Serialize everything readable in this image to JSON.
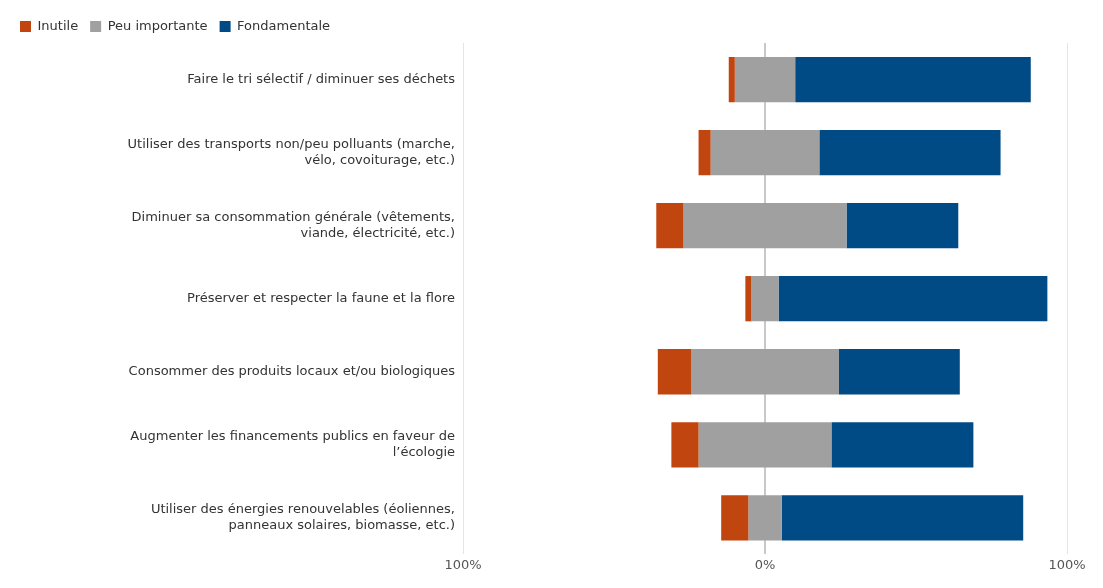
{
  "chart_data": {
    "type": "bar",
    "orientation": "horizontal",
    "categories": [
      "Faire le tri sélectif / diminuer ses déchets",
      "Utiliser des transports non/peu polluants (marche, vélo, covoiturage, etc.)",
      "Diminuer sa consommation générale (vêtements, viande, électricité, etc.)",
      "Préserver et respecter la faune et la flore",
      "Consommer des produits locaux et/ou biologiques",
      "Augmenter les financements publics en faveur de l’écologie",
      "Utiliser des énergies renouvelables (éoliennes, panneaux solaires, biomasse, etc.)"
    ],
    "series": [
      {
        "name": "Inutile",
        "color": "#c0450f",
        "values": [
          2,
          4,
          9,
          2,
          11,
          9,
          9
        ],
        "base": [
          -12,
          -22,
          -36,
          -6.5,
          -35.5,
          -31,
          -14.5
        ]
      },
      {
        "name": "Peu importante",
        "color": "#a0a0a0",
        "values": [
          20,
          36,
          54,
          9,
          49,
          44,
          11
        ],
        "base": [
          -10,
          -18,
          -27,
          -4.5,
          -24.5,
          -22,
          -5.5
        ]
      },
      {
        "name": "Fondamentale",
        "color": "#004a86",
        "values": [
          78,
          60,
          37,
          89,
          40,
          47,
          80
        ],
        "base": [
          10,
          18,
          27,
          4.5,
          24.5,
          22,
          5.5
        ]
      }
    ],
    "xlim": [
      -100,
      100
    ],
    "xticks": [
      {
        "value": -100,
        "label": "100%"
      },
      {
        "value": 0,
        "label": "0%"
      },
      {
        "value": 100,
        "label": "100%"
      }
    ],
    "grid": "x",
    "legend": "top left"
  }
}
